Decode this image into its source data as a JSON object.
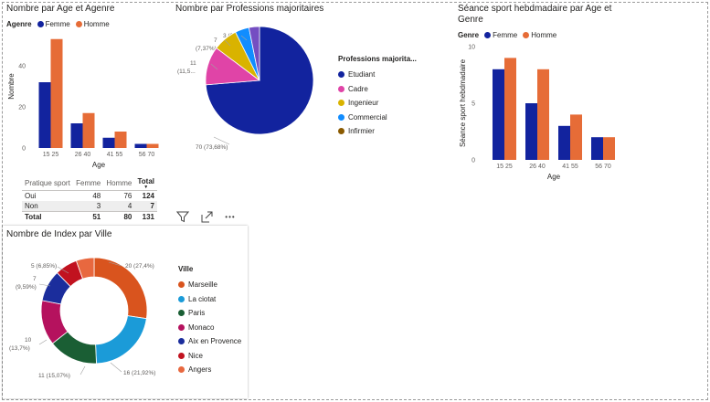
{
  "visual1": {
    "title": "Nombre par Age et Agenre",
    "legend_title": "Agenre",
    "chart_data": {
      "type": "bar",
      "title": "Nombre par Age et Agenre",
      "xlabel": "Age",
      "ylabel": "Nombre",
      "categories": [
        "15 25",
        "26 40",
        "41 55",
        "56 70"
      ],
      "series": [
        {
          "name": "Femme",
          "values": [
            32,
            12,
            5,
            2
          ],
          "color": "#12239E"
        },
        {
          "name": "Homme",
          "values": [
            53,
            17,
            8,
            2
          ],
          "color": "#E66C37"
        }
      ],
      "yticks": [
        0,
        20,
        40
      ],
      "ylim": [
        0,
        60
      ],
      "legend": "top-left"
    }
  },
  "visual2": {
    "title": "Nombre par Professions majoritaires",
    "legend_title": "Professions majorita...",
    "chart_data": {
      "type": "pie",
      "title": "Nombre par Professions majoritaires",
      "slices": [
        {
          "label": "Etudiant",
          "value": 70,
          "text": "70 (73,68%)",
          "color": "#12239E"
        },
        {
          "label": "Cadre",
          "value": 11,
          "text": "11 (11,5...)",
          "color": "#E044A7"
        },
        {
          "label": "Ingenieur",
          "value": 7,
          "text": "7 (7,37%)",
          "color": "#D9B300"
        },
        {
          "label": "Commercial",
          "value": 4,
          "text": "",
          "color": "#118DFF"
        },
        {
          "label": "Infirmier",
          "value": 3,
          "text": "3 (3,16%)",
          "color": "#744EC2"
        }
      ],
      "legend": "right"
    },
    "label_parts": {
      "etudiant": "70 (73,68%)",
      "cadre_a": "11",
      "cadre_b": "(11,5...",
      "ing_a": "7",
      "ing_b": "(7,37%)",
      "inf": "3 (3,16%)"
    }
  },
  "visual3": {
    "title_line1": "Séance sport hebdmadaire par Age et",
    "title_line2": "Genre",
    "legend_title": "Genre",
    "chart_data": {
      "type": "bar",
      "title": "Séance sport hebdmadaire par Age et Genre",
      "xlabel": "Age",
      "ylabel": "Séance sport hebdmadaire",
      "categories": [
        "15 25",
        "26 40",
        "41 55",
        "56 70"
      ],
      "series": [
        {
          "name": "Femme",
          "values": [
            8,
            5,
            3,
            2
          ],
          "color": "#12239E"
        },
        {
          "name": "Homme",
          "values": [
            9,
            8,
            4,
            2
          ],
          "color": "#E66C37"
        }
      ],
      "yticks": [
        0,
        5,
        10
      ],
      "ylim": [
        0,
        10
      ],
      "legend": "top-left"
    }
  },
  "matrix": {
    "headers": [
      "Pratique sport",
      "Femme",
      "Homme",
      "Total"
    ],
    "rows": [
      [
        "Oui",
        "48",
        "76",
        "124"
      ],
      [
        "Non",
        "3",
        "4",
        "7"
      ]
    ],
    "total": [
      "Total",
      "51",
      "80",
      "131"
    ]
  },
  "visual4": {
    "title": "Nombre de Index par Ville",
    "legend_title": "Ville",
    "chart_data": {
      "type": "pie",
      "title": "Nombre de Index par Ville",
      "slices": [
        {
          "label": "Marseille",
          "value": 20,
          "text": "20 (27,4%)",
          "color": "#D9541E"
        },
        {
          "label": "La ciotat",
          "value": 16,
          "text": "16 (21,92%)",
          "color": "#1B9BD8"
        },
        {
          "label": "Paris",
          "value": 11,
          "text": "11 (15,07%)",
          "color": "#1A5E34"
        },
        {
          "label": "Monaco",
          "value": 10,
          "text": "10 (13,7%)",
          "color": "#B5125E"
        },
        {
          "label": "Aix en Provence",
          "value": 7,
          "text": "7 (9,59%)",
          "color": "#1B2D9C"
        },
        {
          "label": "Nice",
          "value": 5,
          "text": "5 (6,85%)",
          "color": "#C1121F"
        },
        {
          "label": "Angers",
          "value": 4,
          "text": "",
          "color": "#E8683F"
        }
      ],
      "legend": "right"
    },
    "label_parts": {
      "marseille": "20 (27,4%)",
      "laciotat": "16 (21,92%)",
      "paris": "11 (15,07%)",
      "monaco_a": "10",
      "monaco_b": "(13,7%)",
      "aix_a": "7",
      "aix_b": "(9,59%)",
      "nice": "5 (6,85%)"
    }
  },
  "toolbar": {
    "filter_icon": "filter-icon",
    "focus_icon": "focus-mode-icon",
    "more_icon": "more-options-icon",
    "more_label": "•••"
  }
}
